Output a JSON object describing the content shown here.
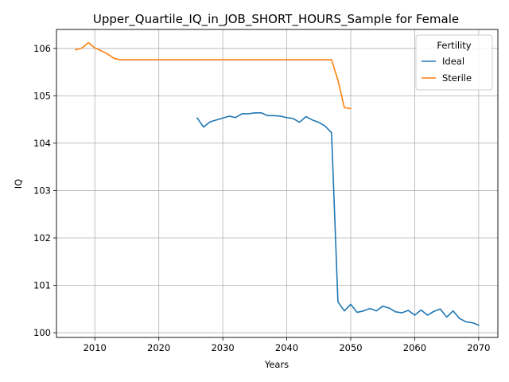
{
  "chart_data": {
    "type": "line",
    "title": "Upper_Quartile_IQ_in_JOB_SHORT_HOURS_Sample for Female",
    "xlabel": "Years",
    "ylabel": "IQ",
    "xlim": [
      2004,
      2073
    ],
    "ylim": [
      99.9,
      106.4
    ],
    "xticks": [
      2010,
      2020,
      2030,
      2040,
      2050,
      2060,
      2070
    ],
    "yticks": [
      100,
      101,
      102,
      103,
      104,
      105,
      106
    ],
    "grid": true,
    "legend": {
      "title": "Fertility",
      "position": "top-right"
    },
    "series": [
      {
        "name": "Ideal",
        "color": "#1f77b4",
        "x": [
          2026,
          2027,
          2028,
          2029,
          2030,
          2031,
          2032,
          2033,
          2034,
          2035,
          2036,
          2037,
          2038,
          2039,
          2040,
          2041,
          2042,
          2043,
          2044,
          2045,
          2046,
          2047,
          2048,
          2049,
          2050,
          2051,
          2052,
          2053,
          2054,
          2055,
          2056,
          2057,
          2058,
          2059,
          2060,
          2061,
          2062,
          2063,
          2064,
          2065,
          2066,
          2067,
          2068,
          2069,
          2070
        ],
        "y": [
          104.53,
          104.34,
          104.45,
          104.49,
          104.53,
          104.57,
          104.54,
          104.62,
          104.62,
          104.64,
          104.64,
          104.58,
          104.58,
          104.57,
          104.54,
          104.52,
          104.44,
          104.56,
          104.49,
          104.44,
          104.36,
          104.22,
          100.65,
          100.46,
          100.6,
          100.43,
          100.46,
          100.51,
          100.46,
          100.56,
          100.52,
          100.44,
          100.42,
          100.47,
          100.37,
          100.48,
          100.37,
          100.45,
          100.5,
          100.33,
          100.46,
          100.3,
          100.23,
          100.21,
          100.16
        ]
      },
      {
        "name": "Sterile",
        "color": "#ff7f0e",
        "x": [
          2007,
          2008,
          2009,
          2010,
          2011,
          2012,
          2013,
          2014,
          2015,
          2016,
          2017,
          2018,
          2019,
          2020,
          2021,
          2022,
          2023,
          2024,
          2025,
          2026,
          2027,
          2028,
          2029,
          2030,
          2031,
          2032,
          2033,
          2034,
          2035,
          2036,
          2037,
          2038,
          2039,
          2040,
          2041,
          2042,
          2043,
          2044,
          2045,
          2046,
          2047,
          2048,
          2049,
          2050
        ],
        "y": [
          105.97,
          106.01,
          106.12,
          106.01,
          105.95,
          105.88,
          105.79,
          105.76,
          105.76,
          105.76,
          105.76,
          105.76,
          105.76,
          105.76,
          105.76,
          105.76,
          105.76,
          105.76,
          105.76,
          105.76,
          105.76,
          105.76,
          105.76,
          105.76,
          105.76,
          105.76,
          105.76,
          105.76,
          105.76,
          105.76,
          105.76,
          105.76,
          105.76,
          105.76,
          105.76,
          105.76,
          105.76,
          105.76,
          105.76,
          105.76,
          105.76,
          105.33,
          104.75,
          104.73
        ]
      }
    ]
  }
}
